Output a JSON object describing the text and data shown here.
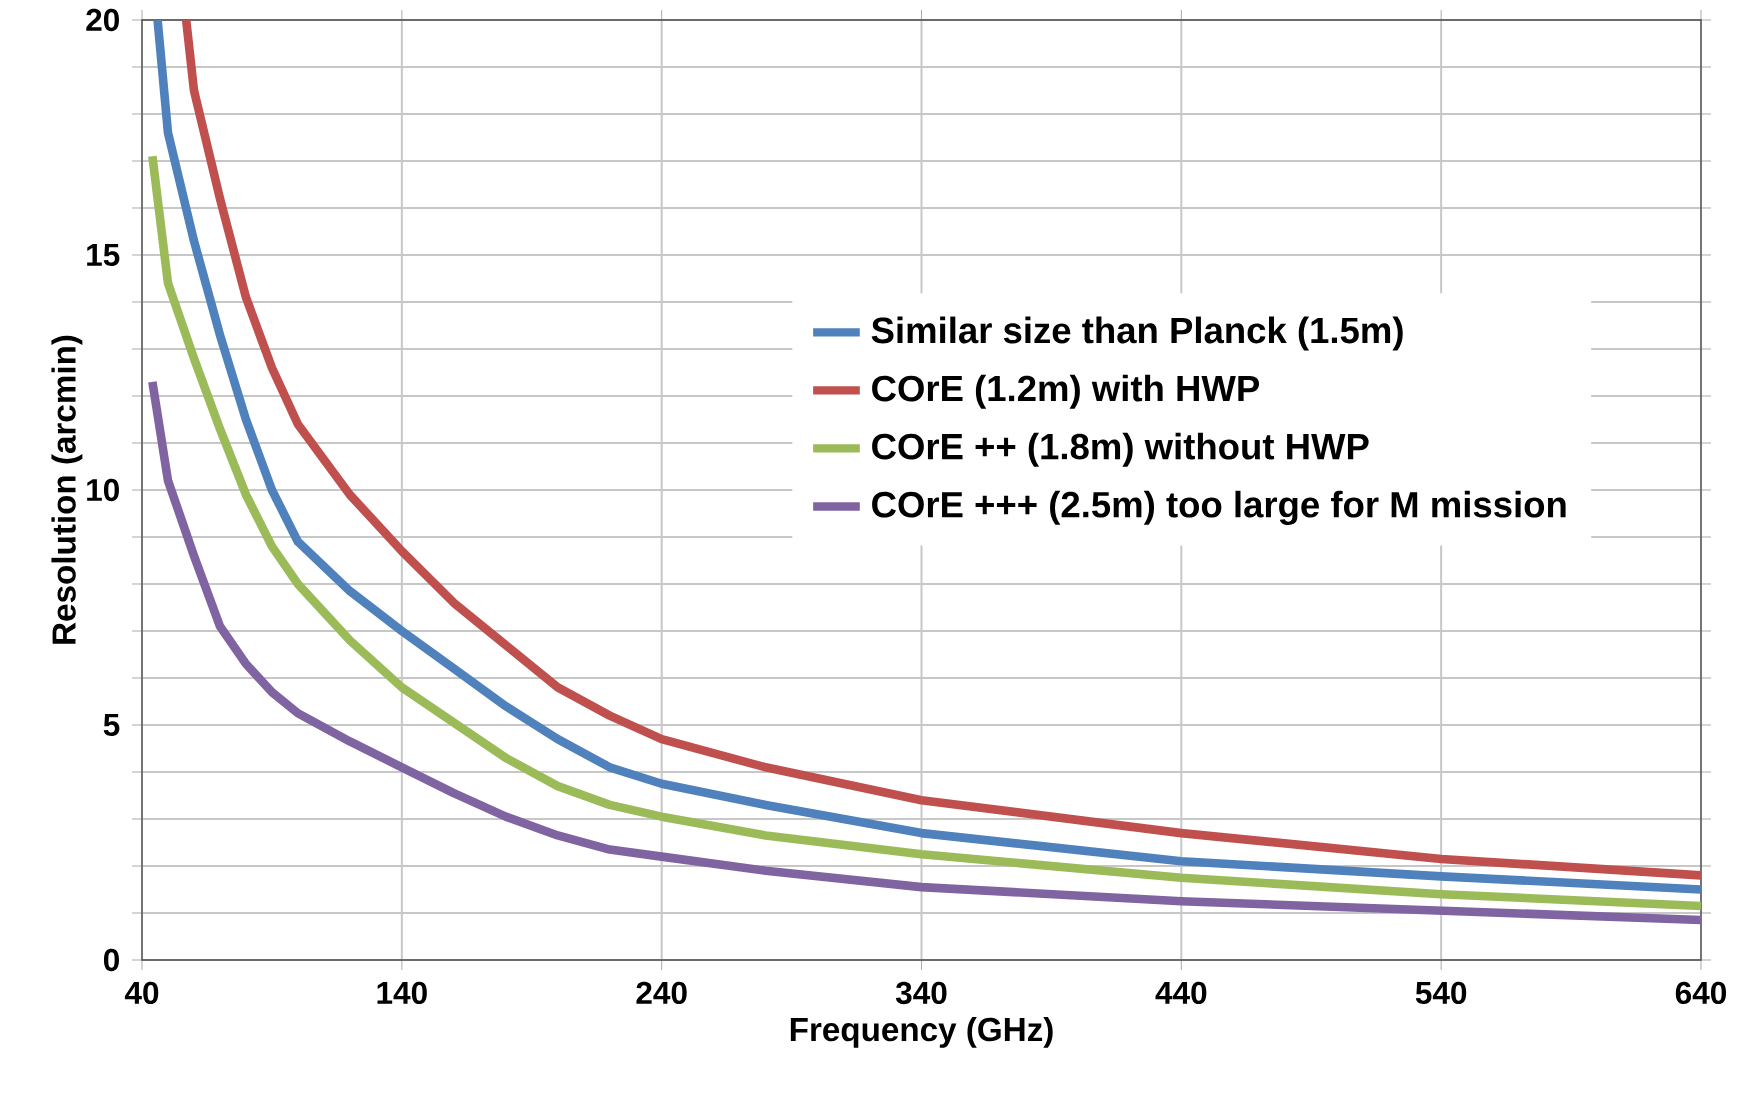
{
  "chart_data": {
    "type": "line",
    "xlabel": "Frequency (GHz)",
    "ylabel": "Resolution (arcmin)",
    "xlim": [
      40,
      640
    ],
    "ylim": [
      0,
      20
    ],
    "xticks": [
      40,
      140,
      240,
      340,
      440,
      540,
      640
    ],
    "yticks": [
      0,
      {
        "value": 1,
        "label": null
      },
      {
        "value": 2,
        "label": null
      },
      {
        "value": 3,
        "label": null
      },
      {
        "value": 4,
        "label": null
      },
      5,
      {
        "value": 6,
        "label": null
      },
      {
        "value": 7,
        "label": null
      },
      {
        "value": 8,
        "label": null
      },
      {
        "value": 9,
        "label": null
      },
      10,
      {
        "value": 11,
        "label": null
      },
      {
        "value": 12,
        "label": null
      },
      {
        "value": 13,
        "label": null
      },
      {
        "value": 14,
        "label": null
      },
      15,
      {
        "value": 16,
        "label": null
      },
      {
        "value": 17,
        "label": null
      },
      {
        "value": 18,
        "label": null
      },
      {
        "value": 19,
        "label": null
      },
      20
    ],
    "grid": true,
    "legend": "right",
    "marker": "none",
    "line_style": "solid",
    "series": [
      {
        "name": "Similar size than Planck (1.5m)",
        "color": "#4f81bd",
        "x": [
          46,
          50,
          60,
          70,
          80,
          90,
          100,
          120,
          140,
          160,
          180,
          200,
          220,
          240,
          280,
          340,
          440,
          540,
          640
        ],
        "values": [
          20,
          17.6,
          15.3,
          13.3,
          11.5,
          10.0,
          8.9,
          7.85,
          7.0,
          6.2,
          5.4,
          4.7,
          4.1,
          3.75,
          3.3,
          2.7,
          2.1,
          1.78,
          1.5
        ]
      },
      {
        "name": "COrE (1.2m) with HWP",
        "color": "#c0504d",
        "x": [
          57,
          60,
          70,
          80,
          90,
          100,
          120,
          140,
          160,
          180,
          200,
          220,
          240,
          280,
          340,
          440,
          540,
          640
        ],
        "values": [
          20,
          18.5,
          16.2,
          14.1,
          12.6,
          11.4,
          9.9,
          8.7,
          7.6,
          6.7,
          5.8,
          5.2,
          4.7,
          4.1,
          3.4,
          2.7,
          2.15,
          1.8
        ]
      },
      {
        "name": "COrE ++ (1.8m) without HWP",
        "color": "#9bbb59",
        "x": [
          44,
          50,
          60,
          70,
          80,
          90,
          100,
          120,
          140,
          160,
          180,
          200,
          220,
          240,
          280,
          340,
          440,
          540,
          640
        ],
        "values": [
          17.1,
          14.4,
          12.8,
          11.3,
          9.9,
          8.8,
          8.0,
          6.8,
          5.8,
          5.05,
          4.3,
          3.7,
          3.3,
          3.05,
          2.65,
          2.25,
          1.75,
          1.4,
          1.15
        ]
      },
      {
        "name": "COrE +++ (2.5m) too large for M mission",
        "color": "#8064a2",
        "x": [
          44,
          50,
          60,
          70,
          80,
          90,
          100,
          120,
          140,
          160,
          180,
          200,
          220,
          240,
          280,
          340,
          440,
          540,
          640
        ],
        "values": [
          12.3,
          10.2,
          8.6,
          7.1,
          6.3,
          5.7,
          5.25,
          4.65,
          4.1,
          3.55,
          3.05,
          2.65,
          2.35,
          2.2,
          1.9,
          1.55,
          1.25,
          1.05,
          0.85
        ]
      }
    ]
  }
}
